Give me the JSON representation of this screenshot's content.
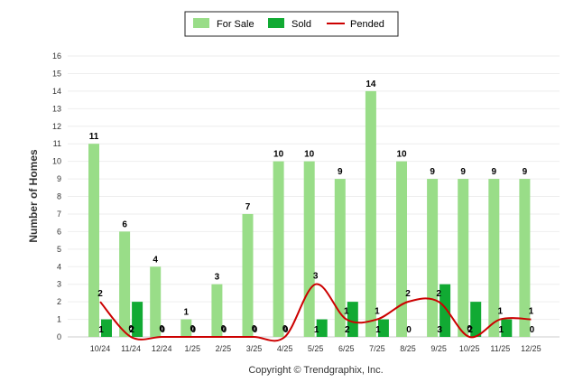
{
  "chart_data": {
    "type": "bar",
    "title": "",
    "xlabel": "",
    "ylabel": "Number of Homes",
    "ylim": [
      0,
      16
    ],
    "yticks": [
      "0",
      "1",
      "2",
      "3",
      "4",
      "5",
      "6",
      "7",
      "8",
      "9",
      "10",
      "11",
      "12",
      "13",
      "14",
      "15",
      "16"
    ],
    "categories": [
      "10/24",
      "11/24",
      "12/24",
      "1/25",
      "2/25",
      "3/25",
      "4/25",
      "5/25",
      "6/25",
      "7/25",
      "8/25",
      "9/25",
      "10/25",
      "11/25",
      "12/25"
    ],
    "series": [
      {
        "name": "For Sale",
        "kind": "bar",
        "color": "#99dd88",
        "values": [
          11,
          6,
          4,
          1,
          3,
          7,
          10,
          10,
          9,
          14,
          10,
          9,
          9,
          9,
          9
        ]
      },
      {
        "name": "Sold",
        "kind": "bar",
        "color": "#11aa33",
        "values": [
          1,
          2,
          0,
          0,
          0,
          0,
          0,
          1,
          2,
          1,
          0,
          3,
          2,
          1,
          0
        ]
      },
      {
        "name": "Pended",
        "kind": "line",
        "color": "#cc0000",
        "values": [
          2,
          0,
          0,
          0,
          0,
          0,
          0,
          3,
          1,
          1,
          2,
          2,
          0,
          1,
          1
        ]
      }
    ],
    "legend_position": "top-center",
    "footer": "Copyright © Trendgraphix, Inc."
  }
}
